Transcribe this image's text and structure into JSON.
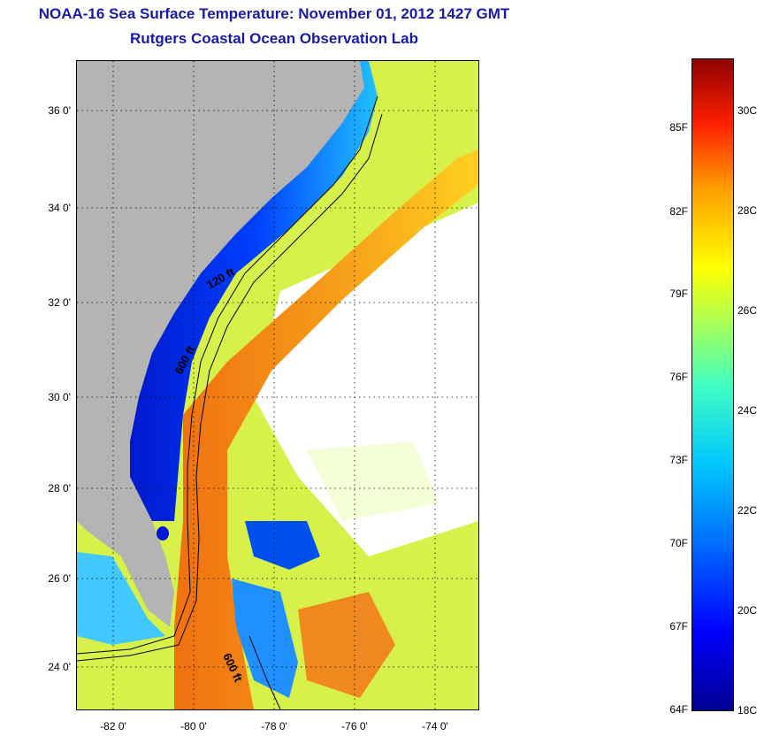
{
  "header": {
    "title": "NOAA-16 Sea Surface Temperature:  November 01, 2012 1427 GMT",
    "subtitle": "Rutgers Coastal Ocean Observation Lab"
  },
  "map": {
    "lat_labels": [
      "36 0'",
      "34 0'",
      "32 0'",
      "30 0'",
      "28 0'",
      "26 0'",
      "24 0'"
    ],
    "lon_labels": [
      "-82 0'",
      "-80 0'",
      "-78 0'",
      "-76 0'",
      "-74 0'"
    ],
    "contours": {
      "shelf_120": "120 ft",
      "shelf_600_north": "600 ft",
      "shelf_600_south": "600 ft"
    },
    "colors": {
      "land": "#b4b4b4",
      "cloud": "#ffffff",
      "cold": "#0010d0",
      "warm": "#f06c10"
    }
  },
  "colorbar": {
    "fahrenheit": [
      "85F",
      "82F",
      "79F",
      "76F",
      "73F",
      "70F",
      "67F",
      "64F"
    ],
    "celsius": [
      "30C",
      "28C",
      "26C",
      "24C",
      "22C",
      "20C",
      "18C"
    ],
    "range_c": [
      18,
      31
    ],
    "range_f": [
      64,
      88
    ]
  }
}
